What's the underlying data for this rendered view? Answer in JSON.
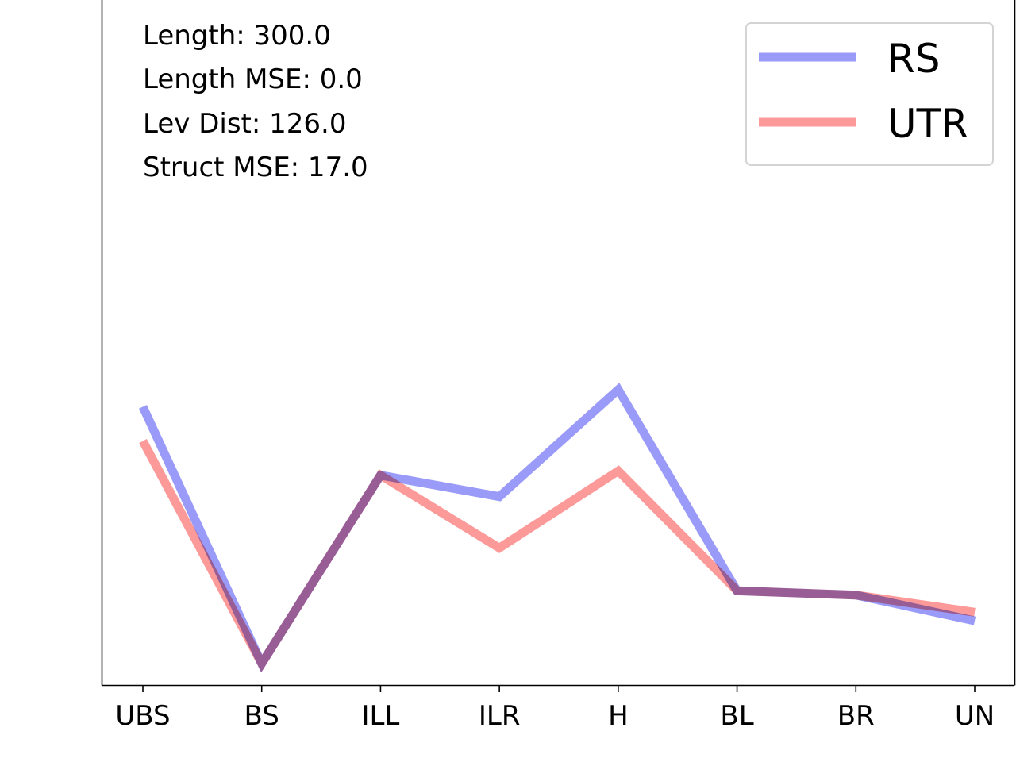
{
  "chart_data": {
    "type": "line",
    "categories": [
      "UBS",
      "BS",
      "ILL",
      "ILR",
      "H",
      "BL",
      "BR",
      "UN"
    ],
    "series": [
      {
        "name": "RS",
        "color": "#9a9af8",
        "values": [
          0.65,
          0.05,
          0.49,
          0.44,
          0.69,
          0.22,
          0.21,
          0.15
        ]
      },
      {
        "name": "UTR",
        "color": "#fc9999",
        "values": [
          0.57,
          0.05,
          0.49,
          0.32,
          0.5,
          0.22,
          0.21,
          0.17
        ]
      }
    ],
    "ylim": [
      0,
      1.6
    ],
    "yticks_shown": false,
    "annotations": [
      "Length: 300.0",
      "Length MSE: 0.0",
      "Lev Dist: 126.0",
      "Struct MSE: 17.0"
    ],
    "legend": {
      "placement": "top-right",
      "entries": [
        "RS",
        "UTR"
      ]
    },
    "grid": false
  }
}
